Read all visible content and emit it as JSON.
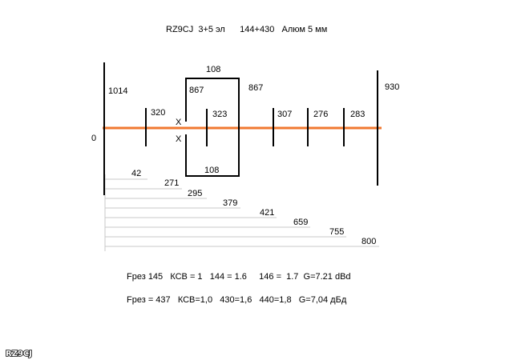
{
  "title": "RZ9CJ  3+5 эл      144+430   Алюм 5 мм",
  "diagram": {
    "boom_label": "0",
    "elements": [
      {
        "label": "1014"
      },
      {
        "label": "320"
      },
      {
        "label": "323"
      },
      {
        "label": "307"
      },
      {
        "label": "276"
      },
      {
        "label": "283"
      },
      {
        "label": "930"
      }
    ],
    "loop": {
      "top": "108",
      "bottom": "108",
      "left": "867",
      "right": "867"
    },
    "feed_marks": [
      "X",
      "X"
    ],
    "spacings": [
      "42",
      "271",
      "295",
      "379",
      "421",
      "659",
      "755",
      "800"
    ],
    "colors": {
      "boom": "#f07830",
      "lines": "#000000",
      "spacing_lines": "#c8c8c8"
    }
  },
  "specs": {
    "line1": "Fрез 145   КСВ = 1   144 = 1.6     146 =  1.7  G=7.21 dBd",
    "line2": "Fрез = 437   КСВ=1,0   430=1,6   440=1,8   G=7,04 дБд"
  },
  "badge": {
    "text": "RZ9CJ"
  }
}
